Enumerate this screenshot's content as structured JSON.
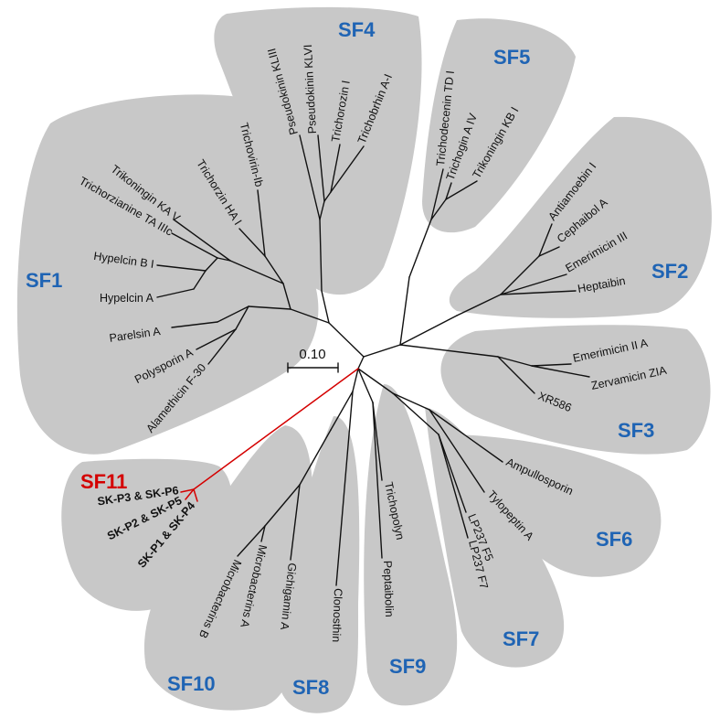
{
  "colors": {
    "group_label": "#1f64b4",
    "highlight": "#d40000",
    "cluster_fill": "#c8c8c8",
    "branch": "#111111"
  },
  "scale_bar": "0.10",
  "groups": {
    "sf1": "SF1",
    "sf2": "SF2",
    "sf3": "SF3",
    "sf4": "SF4",
    "sf5": "SF5",
    "sf6": "SF6",
    "sf7": "SF7",
    "sf8": "SF8",
    "sf9": "SF9",
    "sf10": "SF10",
    "sf11": "SF11"
  },
  "leaves": {
    "trichovirin_ib": "Trichovirin-Ib",
    "trichorzin_ha_i": "Trichorzin HA I",
    "trikoningin_ka_v": "Trikoningin KA V",
    "trichorzianine_ta_iiic": "Trichorzianine TA IIIc",
    "hypelcin_b_i": "Hypelcin B I",
    "hypelcin_a": "Hypelcin A",
    "paralsin_a": "Parelsin A",
    "polysporin_a": "Polysporin A",
    "alamethicin_f30": "Alamethicin F-30",
    "pseudokinin_kliii": "Pseudokinin KLIII",
    "pseudokinin_klvi": "Pseudokinin KLVI",
    "trichorozin_i": "Trichorozin I",
    "trichobrhin_a_i": "Trichobrhin A-I",
    "trichodecenin_td_i": "Trichodecenin TD I",
    "trichogin_a_iv": "Trichogin A IV",
    "trikoningin_kb_i": "Trikoningin KB I",
    "antiamoebin_i": "Antiamoebin I",
    "cephaibol_a": "Cephaibol A",
    "emerimicin_iii": "Emerimicin III",
    "heptaibin": "Heptaibin",
    "emerimicin_ii_a": "Emerimicin II A",
    "zervamicin_zia": "Zervamicin ZIA",
    "xr586": "XR586",
    "ampullosporin": "Ampullosporin",
    "tylopeptin_a": "Tylopeptin A",
    "lp237_f5": "LP237 F5",
    "lp237_f7": "LP237 F7",
    "trichopolyn": "Trichopolyn",
    "peptaibolin": "Peptaibolin",
    "clonostin": "Clonosthin",
    "gichigamin_a": "Gichigamin A",
    "microbacterins_a": "Microbacterins A",
    "microbacterins_b": "Microbacterins B",
    "sk_p3_p6": "SK-P3 & SK-P6",
    "sk_p2_p5": "SK-P2 & SK-P5",
    "sk_p1_p4": "SK-P1 & SK-P4"
  }
}
